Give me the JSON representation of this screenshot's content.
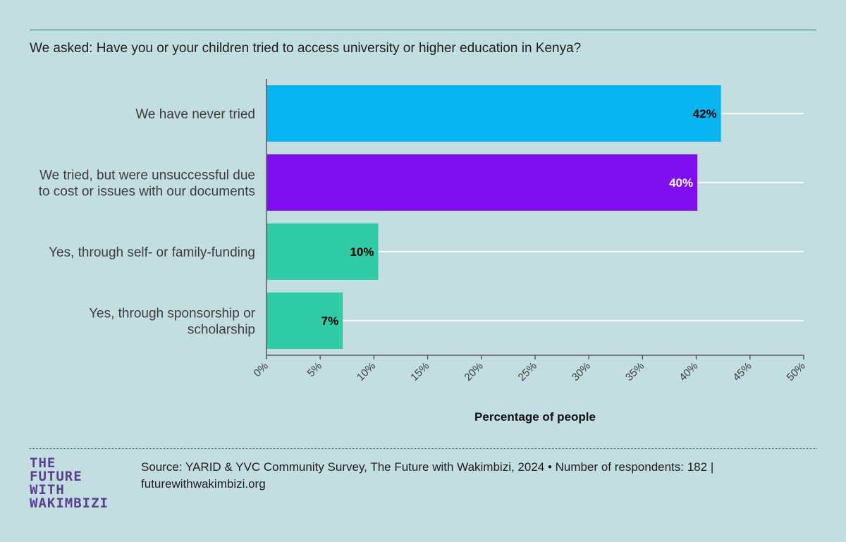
{
  "question": "We asked: Have you or your children tried to access university or higher education in Kenya?",
  "chart_data": {
    "type": "bar",
    "orientation": "horizontal",
    "categories": [
      [
        "We have never tried"
      ],
      [
        "We tried, but were unsuccessful due",
        "to cost or issues with our documents"
      ],
      [
        "Yes, through self- or family-funding"
      ],
      [
        "Yes, through sponsorship or",
        "scholarship"
      ]
    ],
    "values": [
      42.3,
      40.1,
      10.4,
      7.1
    ],
    "value_labels": [
      "42%",
      "40%",
      "10%",
      "7%"
    ],
    "bar_colors": [
      "#06b5f0",
      "#7f0ff0",
      "#2fcca6",
      "#2fcca6"
    ],
    "value_label_colors": [
      "#000000",
      "#ffffff",
      "#000000",
      "#000000"
    ],
    "xlabel": "Percentage of people",
    "xlim": [
      0,
      50
    ],
    "xticks": [
      "0%",
      "5%",
      "10%",
      "15%",
      "20%",
      "25%",
      "30%",
      "35%",
      "40%",
      "45%",
      "50%"
    ],
    "grid": true
  },
  "footer": {
    "logo_lines": [
      "THE",
      "FUTURE",
      "WITH",
      "WAKIMBIZI"
    ],
    "source_line1": "Source: YARID & YVC Community Survey, The Future with Wakimbizi, 2024 • Number of respondents: 182 |",
    "source_line2": "futurewithwakimbizi.org"
  }
}
